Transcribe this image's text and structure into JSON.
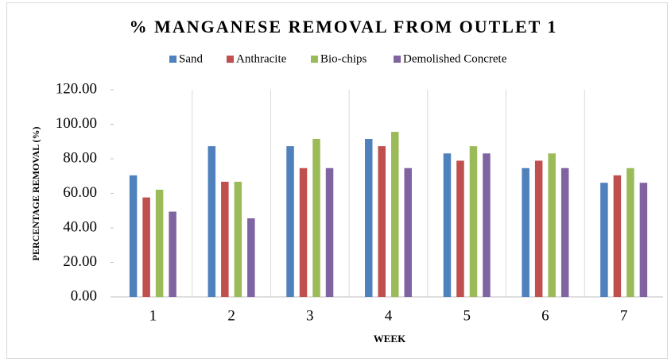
{
  "chart_data": {
    "type": "bar",
    "title": "% MANGANESE  REMOVAL  FROM OUTLET 1",
    "x_label": "WEEK",
    "y_label": "PERCENTAGE REMOVAL (%)",
    "categories": [
      "1",
      "2",
      "3",
      "4",
      "5",
      "6",
      "7"
    ],
    "series": [
      {
        "name": "Sand",
        "color": "#4f81bd",
        "values": [
          70.4,
          87.3,
          87.3,
          91.5,
          83.1,
          74.6,
          66.1
        ]
      },
      {
        "name": "Anthracite",
        "color": "#c0504d",
        "values": [
          57.6,
          66.7,
          74.6,
          87.3,
          78.9,
          78.9,
          70.4
        ]
      },
      {
        "name": "Bio-chips",
        "color": "#9bbb59",
        "values": [
          62.1,
          66.7,
          91.5,
          95.6,
          87.3,
          83.1,
          74.6
        ]
      },
      {
        "name": "Demolished Concrete",
        "color": "#8064a2",
        "values": [
          49.4,
          45.5,
          74.6,
          74.6,
          83.1,
          74.6,
          66.1
        ]
      }
    ],
    "ylim": [
      0,
      120
    ],
    "yticks": [
      {
        "value": 0,
        "label": "0.00"
      },
      {
        "value": 20,
        "label": "20.00"
      },
      {
        "value": 40,
        "label": "40.00"
      },
      {
        "value": 60,
        "label": "60.00"
      },
      {
        "value": 80,
        "label": "80.00"
      },
      {
        "value": 100,
        "label": "100.00"
      },
      {
        "value": 120,
        "label": "120.00"
      }
    ],
    "legend": "top"
  }
}
